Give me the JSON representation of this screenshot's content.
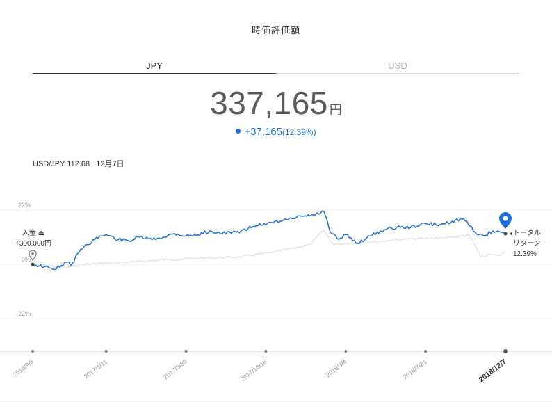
{
  "header": {
    "title": "時価評価額"
  },
  "tabs": [
    {
      "label": "JPY",
      "active": true
    },
    {
      "label": "USD",
      "active": false
    }
  ],
  "valuation": {
    "amount": "337,165",
    "unit": "円",
    "change": "+37,165",
    "change_pct": "(12.39%)"
  },
  "fx": {
    "pair": "USD/JPY 112.68",
    "date": "12月7日"
  },
  "annotations": {
    "deposit_line1": "入金",
    "deposit_line2": "+300,000円",
    "return_line1": "トータル",
    "return_line2": "リターン",
    "return_line3": "12.39%"
  },
  "colors": {
    "portfolio": "#1e6fd9",
    "benchmark": "#e3e4ea",
    "accent": "#1e6fd9"
  },
  "chart_data": {
    "type": "line",
    "x_range": [
      "2016-09-05",
      "2018-12-07"
    ],
    "ylim": [
      -0.35,
      0.22
    ],
    "yticks": [
      {
        "value": 0.22,
        "label": "22%"
      },
      {
        "value": 0,
        "label": "0%"
      },
      {
        "value": -0.22,
        "label": "-22%"
      }
    ],
    "xticks": [
      {
        "date": "2016-09-05",
        "label": "2016/9/5",
        "bold": false
      },
      {
        "date": "2017-01-11",
        "label": "2017/1/11",
        "bold": false
      },
      {
        "date": "2017-05-30",
        "label": "2017/5/30",
        "bold": false
      },
      {
        "date": "2017-10-16",
        "label": "2017/10/16",
        "bold": false
      },
      {
        "date": "2018-03-04",
        "label": "2018/3/4",
        "bold": false
      },
      {
        "date": "2018-07-21",
        "label": "2018/7/21",
        "bold": false
      },
      {
        "date": "2018-12-07",
        "label": "2018/12/7",
        "bold": true
      }
    ],
    "series": [
      {
        "role": "portfolio",
        "points": [
          [
            "2016-09-05",
            0.0
          ],
          [
            "2016-09-25",
            -0.01
          ],
          [
            "2016-10-10",
            -0.02
          ],
          [
            "2016-10-25",
            -0.005
          ],
          [
            "2016-11-06",
            0.01
          ],
          [
            "2016-11-10",
            -0.005
          ],
          [
            "2016-11-25",
            0.05
          ],
          [
            "2016-12-10",
            0.08
          ],
          [
            "2016-12-25",
            0.11
          ],
          [
            "2017-01-11",
            0.12
          ],
          [
            "2017-02-01",
            0.1
          ],
          [
            "2017-02-20",
            0.095
          ],
          [
            "2017-03-10",
            0.11
          ],
          [
            "2017-04-01",
            0.1
          ],
          [
            "2017-04-20",
            0.11
          ],
          [
            "2017-05-10",
            0.125
          ],
          [
            "2017-05-30",
            0.115
          ],
          [
            "2017-06-20",
            0.12
          ],
          [
            "2017-07-10",
            0.135
          ],
          [
            "2017-08-01",
            0.125
          ],
          [
            "2017-08-25",
            0.13
          ],
          [
            "2017-09-15",
            0.145
          ],
          [
            "2017-10-05",
            0.165
          ],
          [
            "2017-10-16",
            0.16
          ],
          [
            "2017-11-10",
            0.175
          ],
          [
            "2017-12-01",
            0.185
          ],
          [
            "2017-12-20",
            0.195
          ],
          [
            "2018-01-10",
            0.2
          ],
          [
            "2018-01-25",
            0.215
          ],
          [
            "2018-02-05",
            0.13
          ],
          [
            "2018-02-20",
            0.1
          ],
          [
            "2018-03-04",
            0.12
          ],
          [
            "2018-03-25",
            0.085
          ],
          [
            "2018-04-15",
            0.115
          ],
          [
            "2018-05-10",
            0.14
          ],
          [
            "2018-06-01",
            0.15
          ],
          [
            "2018-06-25",
            0.15
          ],
          [
            "2018-07-21",
            0.165
          ],
          [
            "2018-08-15",
            0.16
          ],
          [
            "2018-09-05",
            0.175
          ],
          [
            "2018-09-25",
            0.185
          ],
          [
            "2018-10-15",
            0.13
          ],
          [
            "2018-10-30",
            0.115
          ],
          [
            "2018-11-15",
            0.135
          ],
          [
            "2018-11-30",
            0.13
          ],
          [
            "2018-12-07",
            0.124
          ]
        ]
      },
      {
        "role": "benchmark",
        "points": [
          [
            "2016-09-05",
            0.0
          ],
          [
            "2016-10-01",
            -0.005
          ],
          [
            "2016-11-01",
            -0.015
          ],
          [
            "2016-12-01",
            0.0
          ],
          [
            "2017-01-11",
            0.005
          ],
          [
            "2017-03-01",
            0.01
          ],
          [
            "2017-05-01",
            0.02
          ],
          [
            "2017-07-01",
            0.025
          ],
          [
            "2017-09-01",
            0.03
          ],
          [
            "2017-11-01",
            0.05
          ],
          [
            "2018-01-01",
            0.08
          ],
          [
            "2018-01-25",
            0.14
          ],
          [
            "2018-02-10",
            0.08
          ],
          [
            "2018-03-04",
            0.085
          ],
          [
            "2018-04-15",
            0.09
          ],
          [
            "2018-06-01",
            0.1
          ],
          [
            "2018-07-21",
            0.105
          ],
          [
            "2018-09-15",
            0.11
          ],
          [
            "2018-10-05",
            0.12
          ],
          [
            "2018-10-25",
            0.03
          ],
          [
            "2018-11-10",
            0.04
          ],
          [
            "2018-11-25",
            0.035
          ],
          [
            "2018-12-07",
            0.05
          ]
        ]
      }
    ]
  }
}
